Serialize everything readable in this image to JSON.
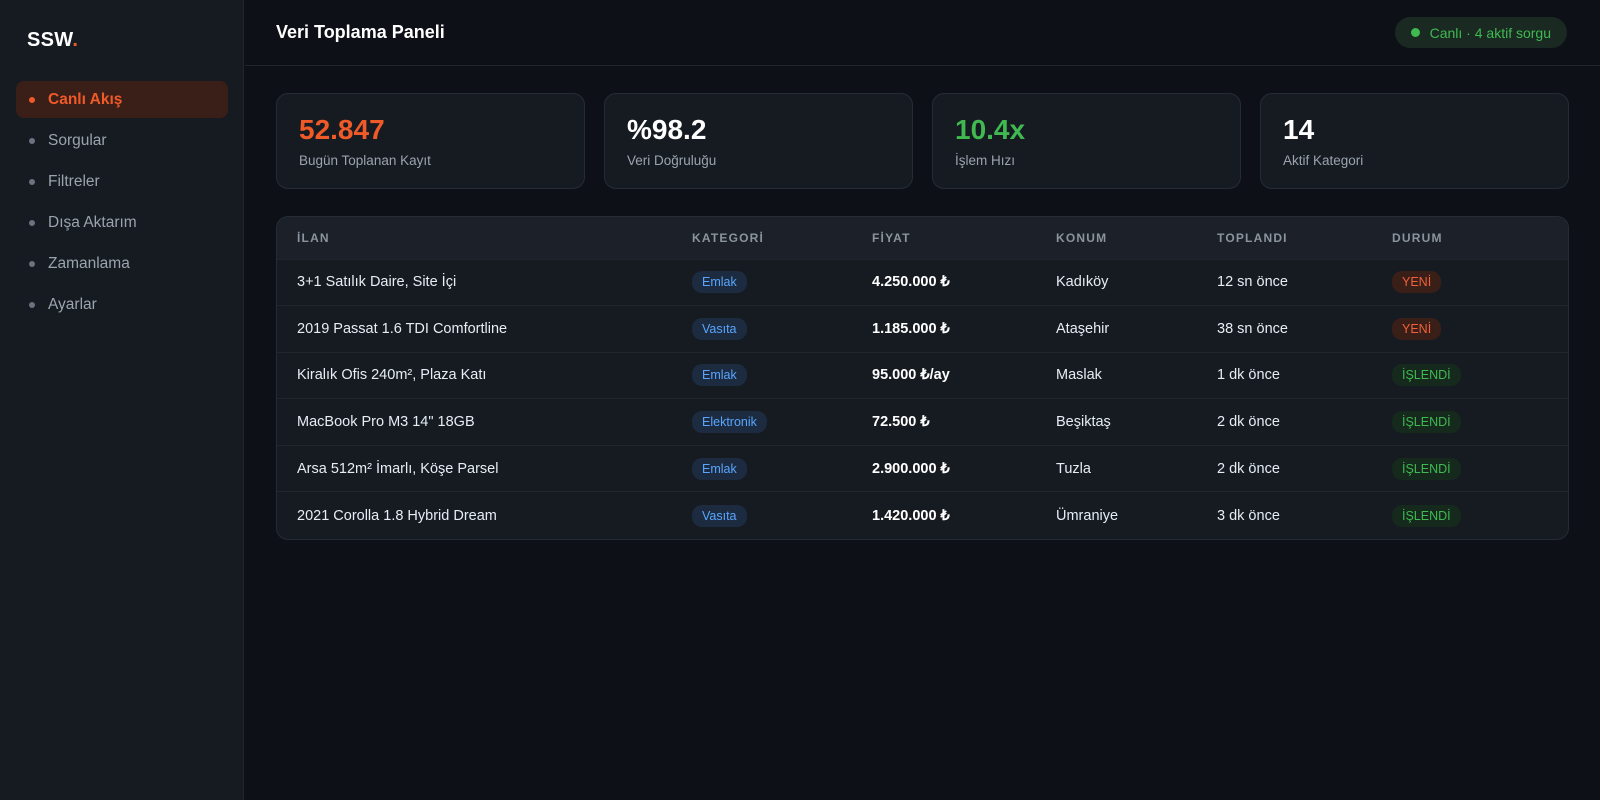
{
  "brand": {
    "name": "SSW",
    "dot": "."
  },
  "sidebar": {
    "items": [
      {
        "label": "Canlı Akış",
        "active": true
      },
      {
        "label": "Sorgular",
        "active": false
      },
      {
        "label": "Filtreler",
        "active": false
      },
      {
        "label": "Dışa Aktarım",
        "active": false
      },
      {
        "label": "Zamanlama",
        "active": false
      },
      {
        "label": "Ayarlar",
        "active": false
      }
    ]
  },
  "header": {
    "title": "Veri Toplama Paneli",
    "live_status": "Canlı · 4 aktif sorgu"
  },
  "stats": [
    {
      "value": "52.847",
      "label": "Bugün Toplanan Kayıt",
      "color": "#f05a28"
    },
    {
      "value": "%98.2",
      "label": "Veri Doğruluğu",
      "color": "#ffffff"
    },
    {
      "value": "10.4x",
      "label": "İşlem Hızı",
      "color": "#3fb950"
    },
    {
      "value": "14",
      "label": "Aktif Kategori",
      "color": "#ffffff"
    }
  ],
  "table": {
    "columns": [
      "İLAN",
      "KATEGORİ",
      "FİYAT",
      "KONUM",
      "TOPLANDI",
      "DURUM"
    ],
    "rows": [
      {
        "title": "3+1 Satılık Daire, Site İçi",
        "category": "Emlak",
        "price": "4.250.000 ₺",
        "location": "Kadıköy",
        "collected": "12 sn önce",
        "status": "YENİ"
      },
      {
        "title": "2019 Passat 1.6 TDI Comfortline",
        "category": "Vasıta",
        "price": "1.185.000 ₺",
        "location": "Ataşehir",
        "collected": "38 sn önce",
        "status": "YENİ"
      },
      {
        "title": "Kiralık Ofis 240m², Plaza Katı",
        "category": "Emlak",
        "price": "95.000 ₺/ay",
        "location": "Maslak",
        "collected": "1 dk önce",
        "status": "İŞLENDİ"
      },
      {
        "title": "MacBook Pro M3 14\" 18GB",
        "category": "Elektronik",
        "price": "72.500 ₺",
        "location": "Beşiktaş",
        "collected": "2 dk önce",
        "status": "İŞLENDİ"
      },
      {
        "title": "Arsa 512m² İmarlı, Köşe Parsel",
        "category": "Emlak",
        "price": "2.900.000 ₺",
        "location": "Tuzla",
        "collected": "2 dk önce",
        "status": "İŞLENDİ"
      },
      {
        "title": "2021 Corolla 1.8 Hybrid Dream",
        "category": "Vasıta",
        "price": "1.420.000 ₺",
        "location": "Ümraniye",
        "collected": "3 dk önce",
        "status": "İŞLENDİ"
      }
    ]
  },
  "colors": {
    "accent": "#f05a28",
    "success": "#3fb950",
    "info": "#58a6ff",
    "background": "#0d1117",
    "panel": "#161b22"
  }
}
